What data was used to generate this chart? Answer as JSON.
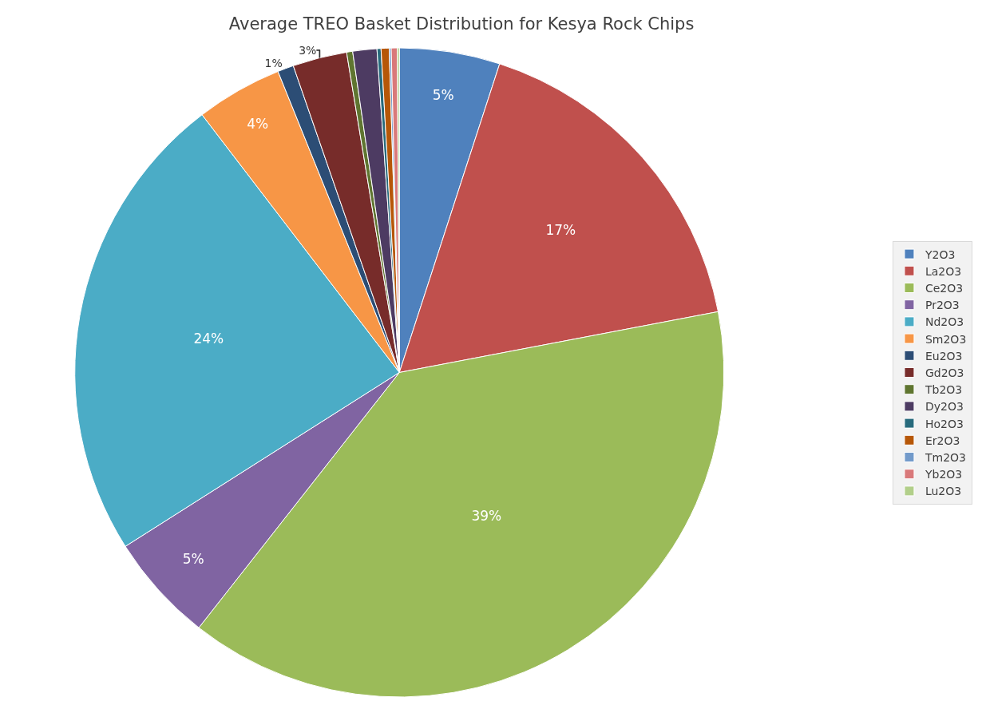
{
  "chart_data": {
    "type": "pie",
    "title": "Average TREO Basket Distribution for Kesya Rock Chips",
    "categories": [
      "Y2O3",
      "La2O3",
      "Ce2O3",
      "Pr2O3",
      "Nd2O3",
      "Sm2O3",
      "Eu2O3",
      "Gd2O3",
      "Tb2O3",
      "Dy2O3",
      "Ho2O3",
      "Er2O3",
      "Tm2O3",
      "Yb2O3",
      "Lu2O3"
    ],
    "values": [
      5.0,
      17.0,
      38.6,
      5.4,
      23.6,
      4.3,
      0.8,
      2.7,
      0.3,
      1.2,
      0.2,
      0.4,
      0.1,
      0.3,
      0.1
    ],
    "colors": [
      "#4f81bd",
      "#c0504d",
      "#9bbb59",
      "#8064a2",
      "#4bacc6",
      "#f79646",
      "#2c4d75",
      "#772c2a",
      "#5f7530",
      "#4d3b62",
      "#276a7c",
      "#b65708",
      "#729aca",
      "#d9797a",
      "#b2cf8a"
    ],
    "value_labels": [
      "5%",
      "17%",
      "39%",
      "5%",
      "24%",
      "4%",
      "1%",
      "3%",
      null,
      null,
      null,
      null,
      null,
      null,
      null
    ],
    "legend": "right"
  }
}
